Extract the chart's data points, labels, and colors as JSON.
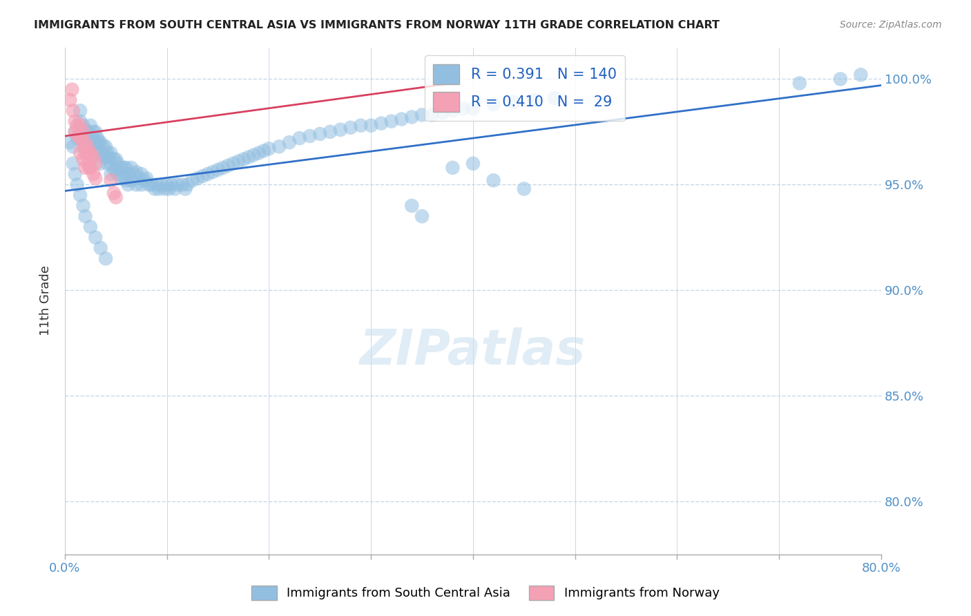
{
  "title": "IMMIGRANTS FROM SOUTH CENTRAL ASIA VS IMMIGRANTS FROM NORWAY 11TH GRADE CORRELATION CHART",
  "source": "Source: ZipAtlas.com",
  "ylabel": "11th Grade",
  "ytick_labels": [
    "100.0%",
    "95.0%",
    "90.0%",
    "85.0%",
    "80.0%"
  ],
  "ytick_values": [
    1.0,
    0.95,
    0.9,
    0.85,
    0.8
  ],
  "xlim": [
    0.0,
    0.8
  ],
  "ylim": [
    0.775,
    1.015
  ],
  "blue_R": 0.391,
  "blue_N": 140,
  "pink_R": 0.41,
  "pink_N": 29,
  "blue_color": "#92BFE0",
  "pink_color": "#F4A0B5",
  "blue_line_color": "#3070C8",
  "pink_line_color": "#D84060",
  "grid_color": "#C8D8E8",
  "grid_linestyle": "--",
  "title_color": "#222222",
  "source_color": "#888888",
  "axis_tick_color": "#5090C8",
  "legend_label_color": "#2060C0",
  "blue_scatter_x": [
    0.005,
    0.008,
    0.01,
    0.012,
    0.015,
    0.015,
    0.018,
    0.018,
    0.02,
    0.02,
    0.02,
    0.022,
    0.022,
    0.025,
    0.025,
    0.025,
    0.028,
    0.028,
    0.03,
    0.03,
    0.03,
    0.032,
    0.032,
    0.033,
    0.035,
    0.035,
    0.035,
    0.038,
    0.038,
    0.04,
    0.04,
    0.042,
    0.042,
    0.043,
    0.045,
    0.045,
    0.045,
    0.048,
    0.048,
    0.05,
    0.05,
    0.052,
    0.052,
    0.055,
    0.055,
    0.058,
    0.058,
    0.06,
    0.06,
    0.062,
    0.062,
    0.065,
    0.065,
    0.068,
    0.07,
    0.07,
    0.072,
    0.075,
    0.075,
    0.078,
    0.08,
    0.082,
    0.085,
    0.088,
    0.09,
    0.092,
    0.095,
    0.098,
    0.1,
    0.102,
    0.105,
    0.108,
    0.11,
    0.115,
    0.118,
    0.12,
    0.125,
    0.13,
    0.135,
    0.14,
    0.145,
    0.15,
    0.155,
    0.16,
    0.165,
    0.17,
    0.175,
    0.18,
    0.185,
    0.19,
    0.195,
    0.2,
    0.21,
    0.22,
    0.23,
    0.24,
    0.25,
    0.26,
    0.27,
    0.28,
    0.29,
    0.3,
    0.31,
    0.32,
    0.33,
    0.34,
    0.35,
    0.36,
    0.37,
    0.38,
    0.39,
    0.4,
    0.42,
    0.44,
    0.46,
    0.48,
    0.34,
    0.35,
    0.42,
    0.45,
    0.008,
    0.01,
    0.012,
    0.015,
    0.018,
    0.02,
    0.025,
    0.03,
    0.035,
    0.04,
    0.38,
    0.4,
    0.72,
    0.76,
    0.78
  ],
  "blue_scatter_y": [
    0.97,
    0.968,
    0.975,
    0.972,
    0.98,
    0.985,
    0.978,
    0.975,
    0.976,
    0.972,
    0.968,
    0.975,
    0.97,
    0.978,
    0.973,
    0.968,
    0.975,
    0.97,
    0.975,
    0.97,
    0.965,
    0.972,
    0.968,
    0.97,
    0.97,
    0.965,
    0.96,
    0.968,
    0.963,
    0.968,
    0.963,
    0.965,
    0.96,
    0.963,
    0.965,
    0.96,
    0.955,
    0.962,
    0.957,
    0.962,
    0.957,
    0.96,
    0.955,
    0.958,
    0.953,
    0.958,
    0.953,
    0.958,
    0.952,
    0.955,
    0.95,
    0.958,
    0.952,
    0.955,
    0.956,
    0.95,
    0.953,
    0.955,
    0.95,
    0.952,
    0.953,
    0.95,
    0.95,
    0.948,
    0.95,
    0.948,
    0.95,
    0.948,
    0.95,
    0.948,
    0.95,
    0.948,
    0.95,
    0.95,
    0.948,
    0.95,
    0.952,
    0.953,
    0.954,
    0.955,
    0.956,
    0.957,
    0.958,
    0.959,
    0.96,
    0.961,
    0.962,
    0.963,
    0.964,
    0.965,
    0.966,
    0.967,
    0.968,
    0.97,
    0.972,
    0.973,
    0.974,
    0.975,
    0.976,
    0.977,
    0.978,
    0.978,
    0.979,
    0.98,
    0.981,
    0.982,
    0.983,
    0.983,
    0.984,
    0.985,
    0.986,
    0.986,
    0.988,
    0.989,
    0.99,
    0.991,
    0.94,
    0.935,
    0.952,
    0.948,
    0.96,
    0.955,
    0.95,
    0.945,
    0.94,
    0.935,
    0.93,
    0.925,
    0.92,
    0.915,
    0.958,
    0.96,
    0.998,
    1.0,
    1.002
  ],
  "pink_scatter_x": [
    0.005,
    0.007,
    0.008,
    0.01,
    0.01,
    0.012,
    0.013,
    0.015,
    0.015,
    0.015,
    0.018,
    0.018,
    0.018,
    0.02,
    0.02,
    0.02,
    0.022,
    0.022,
    0.024,
    0.024,
    0.025,
    0.025,
    0.028,
    0.028,
    0.03,
    0.03,
    0.045,
    0.048,
    0.05
  ],
  "pink_scatter_y": [
    0.99,
    0.995,
    0.985,
    0.98,
    0.975,
    0.978,
    0.973,
    0.978,
    0.972,
    0.965,
    0.975,
    0.968,
    0.962,
    0.97,
    0.965,
    0.958,
    0.968,
    0.96,
    0.965,
    0.958,
    0.965,
    0.958,
    0.963,
    0.955,
    0.96,
    0.953,
    0.952,
    0.946,
    0.944
  ],
  "blue_trend_x": [
    0.0,
    0.8
  ],
  "blue_trend_y": [
    0.947,
    0.997
  ],
  "pink_trend_x": [
    0.0,
    0.38
  ],
  "pink_trend_y": [
    0.973,
    0.998
  ],
  "num_xticks": 9
}
